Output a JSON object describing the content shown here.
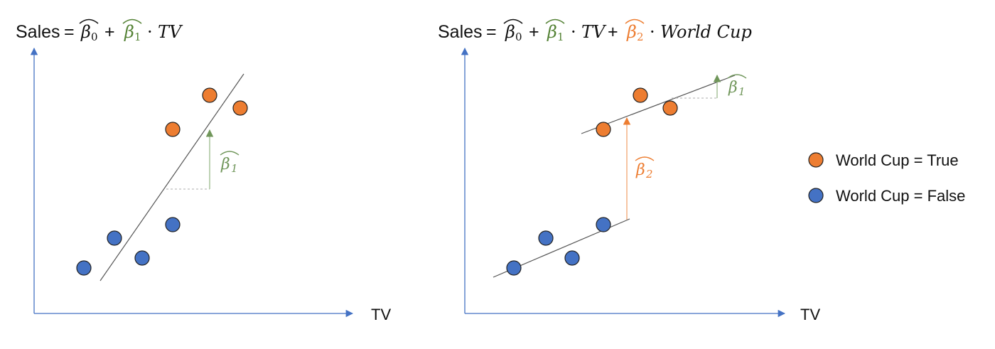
{
  "left_panel": {
    "equation": {
      "lhs": "Sales",
      "equals": "=",
      "beta0": "β",
      "beta0_sub": "0",
      "plus1": "+",
      "beta1": "β",
      "beta1_sub": "1",
      "dot1": "·",
      "tv": "TV"
    },
    "x_axis_label": "TV",
    "slope_label": {
      "symbol": "β",
      "sub": "1"
    },
    "points_true": [
      [
        243,
        182
      ],
      [
        295,
        134
      ],
      [
        338,
        152
      ]
    ],
    "points_false": [
      [
        118,
        377
      ],
      [
        161,
        335
      ],
      [
        200,
        363
      ],
      [
        243,
        316
      ]
    ]
  },
  "right_panel": {
    "equation": {
      "lhs": "Sales",
      "equals": "=",
      "beta0": "β",
      "beta0_sub": "0",
      "plus1": "+",
      "beta1": "β",
      "beta1_sub": "1",
      "dot1": "·",
      "tv": "TV",
      "plus2": "+",
      "beta2": "β",
      "beta2_sub": "2",
      "dot2": "·",
      "world_cup": "World Cup"
    },
    "x_axis_label": "TV",
    "slope_label": {
      "symbol": "β",
      "sub": "1"
    },
    "shift_label": {
      "symbol": "β",
      "sub": "2"
    },
    "points_true": [
      [
        849,
        182
      ],
      [
        901,
        134
      ],
      [
        943,
        152
      ]
    ],
    "points_false": [
      [
        723,
        377
      ],
      [
        768,
        335
      ],
      [
        805,
        363
      ],
      [
        849,
        316
      ]
    ]
  },
  "legend": {
    "items": [
      {
        "label": "World Cup = True",
        "color": "#ED7D31"
      },
      {
        "label": "World Cup = False",
        "color": "#4472C4"
      }
    ]
  },
  "colors": {
    "true_point": "#ED7D31",
    "false_point": "#4472C4",
    "axis": "#4472C4",
    "beta1": "#548235",
    "beta2": "#ED7D31",
    "fit_line": "#555555"
  }
}
